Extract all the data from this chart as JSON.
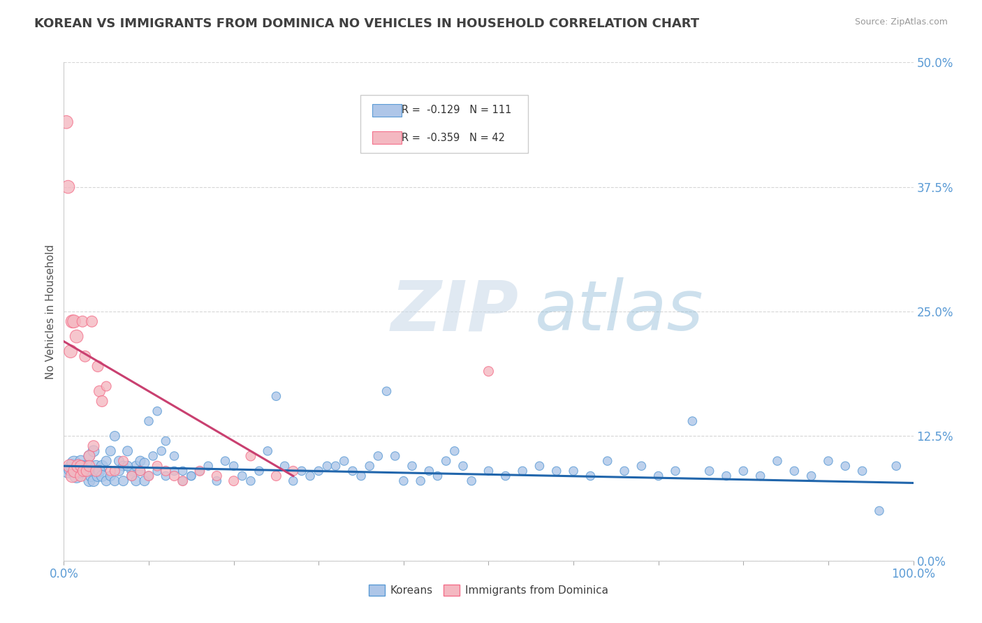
{
  "title": "KOREAN VS IMMIGRANTS FROM DOMINICA NO VEHICLES IN HOUSEHOLD CORRELATION CHART",
  "source": "Source: ZipAtlas.com",
  "ylabel_label": "No Vehicles in Household",
  "watermark_zip": "ZIP",
  "watermark_atlas": "atlas",
  "blue_color": "#5b9bd5",
  "pink_color": "#f4708b",
  "blue_fill": "#aec6e8",
  "pink_fill": "#f4b8c1",
  "blue_line_color": "#2166ac",
  "pink_line_color": "#c94070",
  "background_color": "#ffffff",
  "grid_color": "#bbbbbb",
  "title_color": "#404040",
  "axis_label_color": "#5b9bd5",
  "korean_x": [
    0.5,
    0.8,
    1.0,
    1.2,
    1.5,
    1.8,
    2.0,
    2.2,
    2.5,
    2.8,
    3.0,
    3.2,
    3.5,
    3.8,
    4.0,
    4.5,
    5.0,
    5.5,
    6.0,
    6.5,
    7.0,
    7.5,
    8.0,
    8.5,
    9.0,
    9.5,
    10.0,
    10.5,
    11.0,
    11.5,
    12.0,
    13.0,
    14.0,
    15.0,
    16.0,
    17.0,
    18.0,
    19.0,
    20.0,
    21.0,
    22.0,
    23.0,
    24.0,
    25.0,
    26.0,
    27.0,
    28.0,
    29.0,
    30.0,
    31.0,
    32.0,
    33.0,
    34.0,
    35.0,
    36.0,
    37.0,
    38.0,
    39.0,
    40.0,
    41.0,
    42.0,
    43.0,
    44.0,
    45.0,
    46.0,
    47.0,
    48.0,
    50.0,
    52.0,
    54.0,
    56.0,
    58.0,
    60.0,
    62.0,
    64.0,
    66.0,
    68.0,
    70.0,
    72.0,
    74.0,
    76.0,
    78.0,
    80.0,
    82.0,
    84.0,
    86.0,
    88.0,
    90.0,
    92.0,
    94.0,
    96.0,
    98.0,
    3.0,
    3.2,
    3.5,
    4.0,
    4.2,
    4.5,
    5.0,
    5.5,
    6.0,
    6.5,
    7.0,
    7.5,
    8.0,
    8.5,
    9.0,
    9.5,
    10.0,
    11.0,
    12.0,
    13.0,
    14.0,
    15.0
  ],
  "korean_y": [
    9.0,
    9.2,
    9.5,
    9.8,
    8.5,
    9.0,
    10.0,
    9.5,
    9.0,
    9.5,
    10.5,
    9.0,
    11.0,
    9.5,
    9.0,
    9.5,
    10.0,
    11.0,
    12.5,
    10.0,
    9.5,
    11.0,
    9.0,
    9.5,
    10.0,
    9.8,
    14.0,
    10.5,
    15.0,
    11.0,
    12.0,
    10.5,
    9.0,
    8.5,
    9.0,
    9.5,
    8.0,
    10.0,
    9.5,
    8.5,
    8.0,
    9.0,
    11.0,
    16.5,
    9.5,
    8.0,
    9.0,
    8.5,
    9.0,
    9.5,
    9.5,
    10.0,
    9.0,
    8.5,
    9.5,
    10.5,
    17.0,
    10.5,
    8.0,
    9.5,
    8.0,
    9.0,
    8.5,
    10.0,
    11.0,
    9.5,
    8.0,
    9.0,
    8.5,
    9.0,
    9.5,
    9.0,
    9.0,
    8.5,
    10.0,
    9.0,
    9.5,
    8.5,
    9.0,
    14.0,
    9.0,
    8.5,
    9.0,
    8.5,
    10.0,
    9.0,
    8.5,
    10.0,
    9.5,
    9.0,
    5.0,
    9.5,
    8.0,
    8.5,
    8.0,
    8.5,
    9.0,
    8.5,
    8.0,
    8.5,
    8.0,
    9.0,
    8.0,
    9.5,
    8.5,
    8.0,
    9.0,
    8.0,
    8.5,
    9.0,
    8.5,
    9.0,
    8.0,
    8.5
  ],
  "dominica_x": [
    0.3,
    0.5,
    0.7,
    0.8,
    1.0,
    1.0,
    1.2,
    1.3,
    1.5,
    1.7,
    2.0,
    2.0,
    2.2,
    2.3,
    2.5,
    2.7,
    3.0,
    3.0,
    3.3,
    3.5,
    3.8,
    4.0,
    4.2,
    4.5,
    5.0,
    5.5,
    6.0,
    7.0,
    8.0,
    9.0,
    10.0,
    11.0,
    12.0,
    13.0,
    14.0,
    16.0,
    18.0,
    20.0,
    22.0,
    25.0,
    27.0,
    50.0
  ],
  "dominica_y": [
    44.0,
    37.5,
    9.5,
    21.0,
    24.0,
    8.5,
    24.0,
    9.0,
    22.5,
    9.5,
    9.5,
    8.5,
    24.0,
    9.0,
    20.5,
    9.0,
    10.5,
    9.5,
    24.0,
    11.5,
    9.0,
    19.5,
    17.0,
    16.0,
    17.5,
    9.0,
    9.0,
    10.0,
    8.5,
    9.0,
    8.5,
    9.5,
    9.0,
    8.5,
    8.0,
    9.0,
    8.5,
    8.0,
    10.5,
    8.5,
    9.0,
    19.0
  ],
  "xlim": [
    0,
    100
  ],
  "ylim": [
    0,
    50
  ],
  "yticks": [
    0,
    12.5,
    25.0,
    37.5,
    50.0
  ],
  "xticks": [
    0,
    10,
    20,
    30,
    40,
    50,
    60,
    70,
    80,
    90,
    100
  ],
  "xtick_labels": [
    "0.0%",
    "",
    "",
    "",
    "",
    "",
    "",
    "",
    "",
    "",
    "100.0%"
  ],
  "blue_trend": [
    0,
    100,
    9.5,
    7.8
  ],
  "pink_trend": [
    0,
    27,
    22.0,
    8.5
  ]
}
